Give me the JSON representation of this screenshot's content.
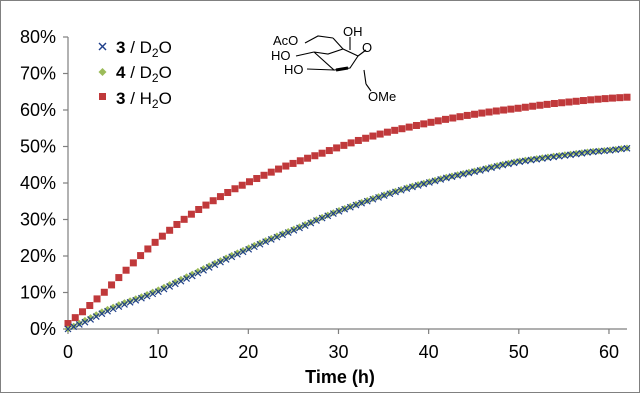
{
  "chart_data": {
    "type": "scatter",
    "title": "",
    "xlabel": "Time (h)",
    "ylabel": "",
    "xlim": [
      0,
      62
    ],
    "ylim": [
      0,
      80
    ],
    "xticks": [
      0,
      10,
      20,
      30,
      40,
      50,
      60
    ],
    "yticks": [
      0,
      10,
      20,
      30,
      40,
      50,
      60,
      70,
      80
    ],
    "ytick_labels": [
      "0%",
      "10%",
      "20%",
      "30%",
      "40%",
      "50%",
      "60%",
      "70%",
      "80%"
    ],
    "grid": false,
    "legend_position": "top-left",
    "series": [
      {
        "name": "3 / D2O",
        "legend_bold": "3",
        "legend_rest": " / D",
        "legend_sub": "2",
        "legend_tail": "O",
        "marker": "x",
        "color": "#1f3f8a"
      },
      {
        "name": "4 / D2O",
        "legend_bold": "4",
        "legend_rest": " / D",
        "legend_sub": "2",
        "legend_tail": "O",
        "marker": "diamond",
        "color": "#9bbb59"
      },
      {
        "name": "3 / H2O",
        "legend_bold": "3",
        "legend_rest": " / H",
        "legend_sub": "2",
        "legend_tail": "O",
        "marker": "square",
        "color": "#c0393b"
      }
    ],
    "curves": {
      "3 / D2O": [
        [
          0,
          0
        ],
        [
          2,
          2
        ],
        [
          4,
          4.5
        ],
        [
          6,
          6.5
        ],
        [
          8,
          8.3
        ],
        [
          10,
          10.2
        ],
        [
          12,
          12.5
        ],
        [
          14,
          14.8
        ],
        [
          16,
          17.3
        ],
        [
          18,
          19.6
        ],
        [
          20,
          21.8
        ],
        [
          22,
          24
        ],
        [
          24,
          26
        ],
        [
          26,
          28
        ],
        [
          28,
          30.2
        ],
        [
          30,
          32.2
        ],
        [
          32,
          34
        ],
        [
          34,
          35.7
        ],
        [
          36,
          37.3
        ],
        [
          38,
          38.8
        ],
        [
          40,
          40.1
        ],
        [
          42,
          41.4
        ],
        [
          44,
          42.5
        ],
        [
          46,
          43.6
        ],
        [
          48,
          44.8
        ],
        [
          50,
          45.8
        ],
        [
          52,
          46.5
        ],
        [
          54,
          47.2
        ],
        [
          56,
          47.8
        ],
        [
          58,
          48.5
        ],
        [
          60,
          48.9
        ],
        [
          62,
          49.5
        ]
      ],
      "4 / D2O": [
        [
          0,
          0
        ],
        [
          2,
          2.5
        ],
        [
          4,
          5
        ],
        [
          6,
          7
        ],
        [
          8,
          8.7
        ],
        [
          10,
          10.7
        ],
        [
          12,
          13
        ],
        [
          14,
          15.3
        ],
        [
          16,
          17.7
        ],
        [
          18,
          20
        ],
        [
          20,
          22.2
        ],
        [
          22,
          24.3
        ],
        [
          24,
          26.3
        ],
        [
          26,
          28.3
        ],
        [
          28,
          30.4
        ],
        [
          30,
          32.4
        ],
        [
          32,
          34.2
        ],
        [
          34,
          35.9
        ],
        [
          36,
          37.5
        ],
        [
          38,
          39
        ],
        [
          40,
          40.3
        ],
        [
          42,
          41.6
        ],
        [
          44,
          42.7
        ],
        [
          46,
          43.8
        ],
        [
          48,
          45
        ],
        [
          50,
          46
        ],
        [
          52,
          46.7
        ],
        [
          54,
          47.4
        ],
        [
          56,
          48
        ],
        [
          58,
          48.6
        ],
        [
          60,
          49
        ],
        [
          62,
          49.6
        ]
      ],
      "3 / H2O": [
        [
          0,
          1.5
        ],
        [
          2,
          5.5
        ],
        [
          4,
          10
        ],
        [
          6,
          15
        ],
        [
          8,
          20
        ],
        [
          10,
          24.5
        ],
        [
          12,
          28.5
        ],
        [
          14,
          32
        ],
        [
          16,
          35
        ],
        [
          18,
          37.8
        ],
        [
          20,
          40.2
        ],
        [
          22,
          42.4
        ],
        [
          24,
          44.5
        ],
        [
          26,
          46.3
        ],
        [
          28,
          48
        ],
        [
          30,
          49.8
        ],
        [
          32,
          51.5
        ],
        [
          34,
          53
        ],
        [
          36,
          54.3
        ],
        [
          38,
          55.4
        ],
        [
          40,
          56.5
        ],
        [
          42,
          57.5
        ],
        [
          44,
          58.4
        ],
        [
          46,
          59.2
        ],
        [
          48,
          59.9
        ],
        [
          50,
          60.5
        ],
        [
          52,
          61.2
        ],
        [
          54,
          61.8
        ],
        [
          56,
          62.3
        ],
        [
          58,
          62.8
        ],
        [
          60,
          63.2
        ],
        [
          62,
          63.5
        ]
      ]
    },
    "point_counts": {
      "3 / D2O": 100,
      "4 / D2O": 100,
      "3 / H2O": 78
    },
    "structure_labels": [
      "AcO",
      "HO",
      "HO",
      "OH",
      "O",
      "OMe"
    ]
  }
}
